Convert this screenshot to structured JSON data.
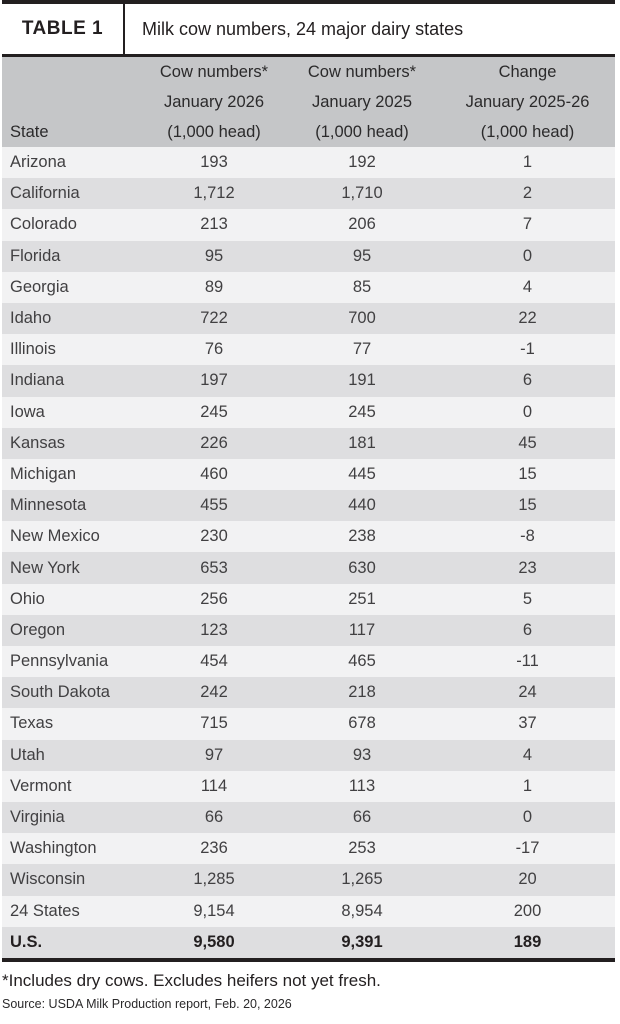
{
  "table": {
    "label": "TABLE 1",
    "title": "Milk cow numbers, 24 major dairy states",
    "columns": [
      {
        "name": "state",
        "header_lines": [
          "",
          "",
          "State"
        ]
      },
      {
        "name": "jan_2026",
        "header_lines": [
          "Cow numbers*",
          "January 2026",
          "(1,000 head)"
        ]
      },
      {
        "name": "jan_2025",
        "header_lines": [
          "Cow numbers*",
          "January 2025",
          "(1,000 head)"
        ]
      },
      {
        "name": "change",
        "header_lines": [
          "Change",
          "January 2025-26",
          "(1,000 head)"
        ]
      }
    ],
    "rows": [
      {
        "state": "Arizona",
        "jan_2026": "193",
        "jan_2025": "192",
        "change": "1"
      },
      {
        "state": "California",
        "jan_2026": "1,712",
        "jan_2025": "1,710",
        "change": "2"
      },
      {
        "state": "Colorado",
        "jan_2026": "213",
        "jan_2025": "206",
        "change": "7"
      },
      {
        "state": "Florida",
        "jan_2026": "95",
        "jan_2025": "95",
        "change": "0"
      },
      {
        "state": "Georgia",
        "jan_2026": "89",
        "jan_2025": "85",
        "change": "4"
      },
      {
        "state": "Idaho",
        "jan_2026": "722",
        "jan_2025": "700",
        "change": "22"
      },
      {
        "state": "Illinois",
        "jan_2026": "76",
        "jan_2025": "77",
        "change": "-1"
      },
      {
        "state": "Indiana",
        "jan_2026": "197",
        "jan_2025": "191",
        "change": "6"
      },
      {
        "state": "Iowa",
        "jan_2026": "245",
        "jan_2025": "245",
        "change": "0"
      },
      {
        "state": "Kansas",
        "jan_2026": "226",
        "jan_2025": "181",
        "change": "45"
      },
      {
        "state": "Michigan",
        "jan_2026": "460",
        "jan_2025": "445",
        "change": "15"
      },
      {
        "state": "Minnesota",
        "jan_2026": "455",
        "jan_2025": "440",
        "change": "15"
      },
      {
        "state": "New Mexico",
        "jan_2026": "230",
        "jan_2025": "238",
        "change": "-8"
      },
      {
        "state": "New York",
        "jan_2026": "653",
        "jan_2025": "630",
        "change": "23"
      },
      {
        "state": "Ohio",
        "jan_2026": "256",
        "jan_2025": "251",
        "change": "5"
      },
      {
        "state": "Oregon",
        "jan_2026": "123",
        "jan_2025": "117",
        "change": "6"
      },
      {
        "state": "Pennsylvania",
        "jan_2026": "454",
        "jan_2025": "465",
        "change": "-11"
      },
      {
        "state": "South Dakota",
        "jan_2026": "242",
        "jan_2025": "218",
        "change": "24"
      },
      {
        "state": "Texas",
        "jan_2026": "715",
        "jan_2025": "678",
        "change": "37"
      },
      {
        "state": "Utah",
        "jan_2026": "97",
        "jan_2025": "93",
        "change": "4"
      },
      {
        "state": "Vermont",
        "jan_2026": "114",
        "jan_2025": "113",
        "change": "1"
      },
      {
        "state": "Virginia",
        "jan_2026": "66",
        "jan_2025": "66",
        "change": "0"
      },
      {
        "state": "Washington",
        "jan_2026": "236",
        "jan_2025": "253",
        "change": "-17"
      },
      {
        "state": "Wisconsin",
        "jan_2026": "1,285",
        "jan_2025": "1,265",
        "change": "20"
      },
      {
        "state": "24 States",
        "jan_2026": "9,154",
        "jan_2025": "8,954",
        "change": "200"
      },
      {
        "state": "U.S.",
        "jan_2026": "9,580",
        "jan_2025": "9,391",
        "change": "189",
        "bold": true
      }
    ]
  },
  "footnote": "*Includes dry cows. Excludes heifers not yet fresh.",
  "source": "Source: USDA Milk Production report, Feb. 20, 2026",
  "colors": {
    "rule_dark": "#231f20",
    "header_bg": "#c5c6c8",
    "row_light": "#f2f2f3",
    "row_shade": "#dedee0",
    "body_text": "#414042"
  }
}
